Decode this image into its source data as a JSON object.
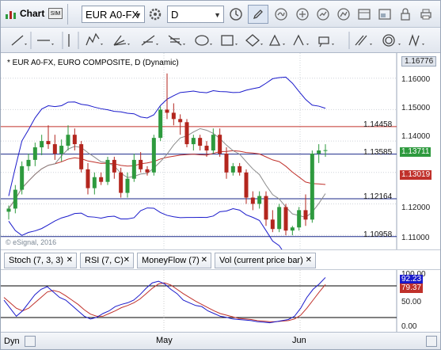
{
  "toolbar": {
    "chart_label": "Chart",
    "symbol_value": "EUR A0-FX",
    "interval_value": "D"
  },
  "chart": {
    "title": "* EUR A0-FX, EURO COMPOSITE, D (Dynamic)",
    "watermark": "© eSignal, 2016",
    "last_price": "1.13711",
    "ma_value": "1.13019",
    "top_price": "1.16776",
    "axis_labels": [
      "1.16000",
      "1.15000",
      "1.14000",
      "1.12000",
      "1.11000"
    ],
    "hlines": [
      {
        "value": 1.14458,
        "label": "1.14458",
        "color": "#c0312b"
      },
      {
        "value": 1.13585,
        "label": "1.13585",
        "color": "#1b2a8a"
      },
      {
        "value": 1.12164,
        "label": "1.12164",
        "color": "#1b2a8a"
      },
      {
        "value": 1.10958,
        "label": "1.10958",
        "color": "#1b2a8a"
      }
    ],
    "x_labels": [
      "May",
      "Jun"
    ]
  },
  "indicator_tabs": [
    {
      "label": "Stoch (7, 3, 3)"
    },
    {
      "label": "RSI (7, C)"
    },
    {
      "label": "MoneyFlow (7)"
    },
    {
      "label": "Vol (current price bar)"
    }
  ],
  "stoch": {
    "blue_value": "92.23",
    "red_value": "79.37",
    "axis_labels": [
      "100.00",
      "50.00",
      "0.00"
    ]
  },
  "bottom_label": "Dyn",
  "colors": {
    "up": "#2e9a3e",
    "down": "#b3261e",
    "band": "#1a1acb",
    "ma": "#c0312b",
    "grey": "#8a8a8a"
  },
  "chart_data": {
    "type": "candlestick",
    "y_range": [
      1.1055,
      1.168
    ],
    "candles": [
      [
        1.1175,
        1.1195,
        1.115,
        1.1185
      ],
      [
        1.1185,
        1.126,
        1.117,
        1.1245
      ],
      [
        1.1245,
        1.1335,
        1.123,
        1.132
      ],
      [
        1.132,
        1.136,
        1.1305,
        1.134
      ],
      [
        1.134,
        1.1395,
        1.132,
        1.138
      ],
      [
        1.138,
        1.142,
        1.1355,
        1.14
      ],
      [
        1.14,
        1.145,
        1.1375,
        1.139
      ],
      [
        1.139,
        1.142,
        1.134,
        1.136
      ],
      [
        1.136,
        1.1405,
        1.1335,
        1.1385
      ],
      [
        1.1385,
        1.145,
        1.137,
        1.142
      ],
      [
        1.142,
        1.144,
        1.137,
        1.139
      ],
      [
        1.139,
        1.14,
        1.13,
        1.131
      ],
      [
        1.131,
        1.133,
        1.123,
        1.125
      ],
      [
        1.125,
        1.13,
        1.123,
        1.1285
      ],
      [
        1.1285,
        1.13,
        1.126,
        1.127
      ],
      [
        1.127,
        1.135,
        1.126,
        1.134
      ],
      [
        1.134,
        1.135,
        1.128,
        1.13
      ],
      [
        1.13,
        1.1315,
        1.122,
        1.1235
      ],
      [
        1.1235,
        1.13,
        1.122,
        1.128
      ],
      [
        1.128,
        1.136,
        1.127,
        1.134
      ],
      [
        1.134,
        1.1365,
        1.13,
        1.131
      ],
      [
        1.131,
        1.132,
        1.129,
        1.13
      ],
      [
        1.13,
        1.142,
        1.129,
        1.141
      ],
      [
        1.141,
        1.151,
        1.14,
        1.15
      ],
      [
        1.15,
        1.1615,
        1.147,
        1.149
      ],
      [
        1.149,
        1.152,
        1.145,
        1.147
      ],
      [
        1.147,
        1.1485,
        1.142,
        1.146
      ],
      [
        1.146,
        1.147,
        1.138,
        1.139
      ],
      [
        1.139,
        1.142,
        1.137,
        1.141
      ],
      [
        1.141,
        1.142,
        1.137,
        1.1385
      ],
      [
        1.1385,
        1.14,
        1.135,
        1.137
      ],
      [
        1.137,
        1.144,
        1.136,
        1.142
      ],
      [
        1.142,
        1.144,
        1.135,
        1.136
      ],
      [
        1.136,
        1.138,
        1.128,
        1.13
      ],
      [
        1.13,
        1.133,
        1.129,
        1.132
      ],
      [
        1.132,
        1.133,
        1.129,
        1.13
      ],
      [
        1.13,
        1.131,
        1.12,
        1.122
      ],
      [
        1.122,
        1.124,
        1.118,
        1.12
      ],
      [
        1.12,
        1.124,
        1.1185,
        1.1225
      ],
      [
        1.1225,
        1.124,
        1.113,
        1.115
      ],
      [
        1.115,
        1.118,
        1.111,
        1.112
      ],
      [
        1.112,
        1.12,
        1.111,
        1.119
      ],
      [
        1.119,
        1.12,
        1.11,
        1.1115
      ],
      [
        1.1115,
        1.113,
        1.11,
        1.1125
      ],
      [
        1.1125,
        1.119,
        1.1115,
        1.118
      ],
      [
        1.118,
        1.123,
        1.113,
        1.115
      ],
      [
        1.115,
        1.137,
        1.114,
        1.136
      ],
      [
        1.136,
        1.139,
        1.133,
        1.137
      ],
      [
        1.137,
        1.139,
        1.135,
        1.1371
      ]
    ],
    "stoch_blue": [
      50,
      35,
      20,
      30,
      45,
      60,
      70,
      75,
      65,
      55,
      50,
      40,
      30,
      20,
      15,
      18,
      25,
      30,
      38,
      42,
      45,
      50,
      60,
      72,
      82,
      85,
      80,
      70,
      62,
      50,
      45,
      40,
      38,
      30,
      25,
      20,
      18,
      15,
      14,
      13,
      12,
      10,
      9,
      8,
      10,
      12,
      14,
      20,
      35,
      55,
      70,
      80,
      92
    ],
    "stoch_red": [
      55,
      45,
      35,
      30,
      35,
      45,
      55,
      65,
      68,
      65,
      58,
      50,
      42,
      32,
      24,
      20,
      20,
      25,
      30,
      36,
      40,
      45,
      52,
      62,
      72,
      80,
      82,
      78,
      70,
      62,
      55,
      48,
      42,
      36,
      30,
      25,
      22,
      19,
      16,
      15,
      14,
      12,
      11,
      10,
      10,
      11,
      12,
      15,
      22,
      35,
      50,
      65,
      79
    ]
  }
}
